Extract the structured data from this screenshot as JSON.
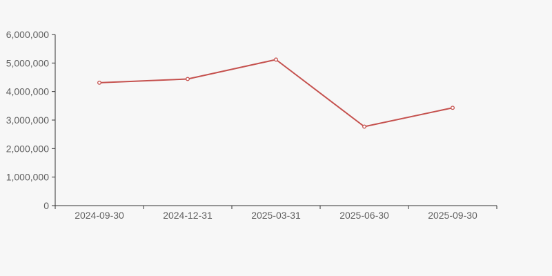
{
  "chart_data": {
    "type": "line",
    "title": "",
    "categories": [
      "2024-09-30",
      "2024-12-31",
      "2025-03-31",
      "2025-06-30",
      "2025-09-30"
    ],
    "series": [
      {
        "name": "value",
        "values": [
          4310000,
          4440000,
          5120000,
          2770000,
          3430000
        ]
      }
    ],
    "xlabel": "",
    "ylabel": "",
    "ylim": [
      0,
      6000000
    ],
    "ytick_interval": 1000000,
    "ytick_labels": [
      "0",
      "1,000,000",
      "2,000,000",
      "3,000,000",
      "4,000,000",
      "5,000,000",
      "6,000,000"
    ],
    "grid": false,
    "legend_position": "none",
    "colors": {
      "line": "#c5514e",
      "marker_fill": "#ffffff",
      "axis": "#333333",
      "tick_label": "#606060",
      "background": "#f7f7f7"
    }
  }
}
